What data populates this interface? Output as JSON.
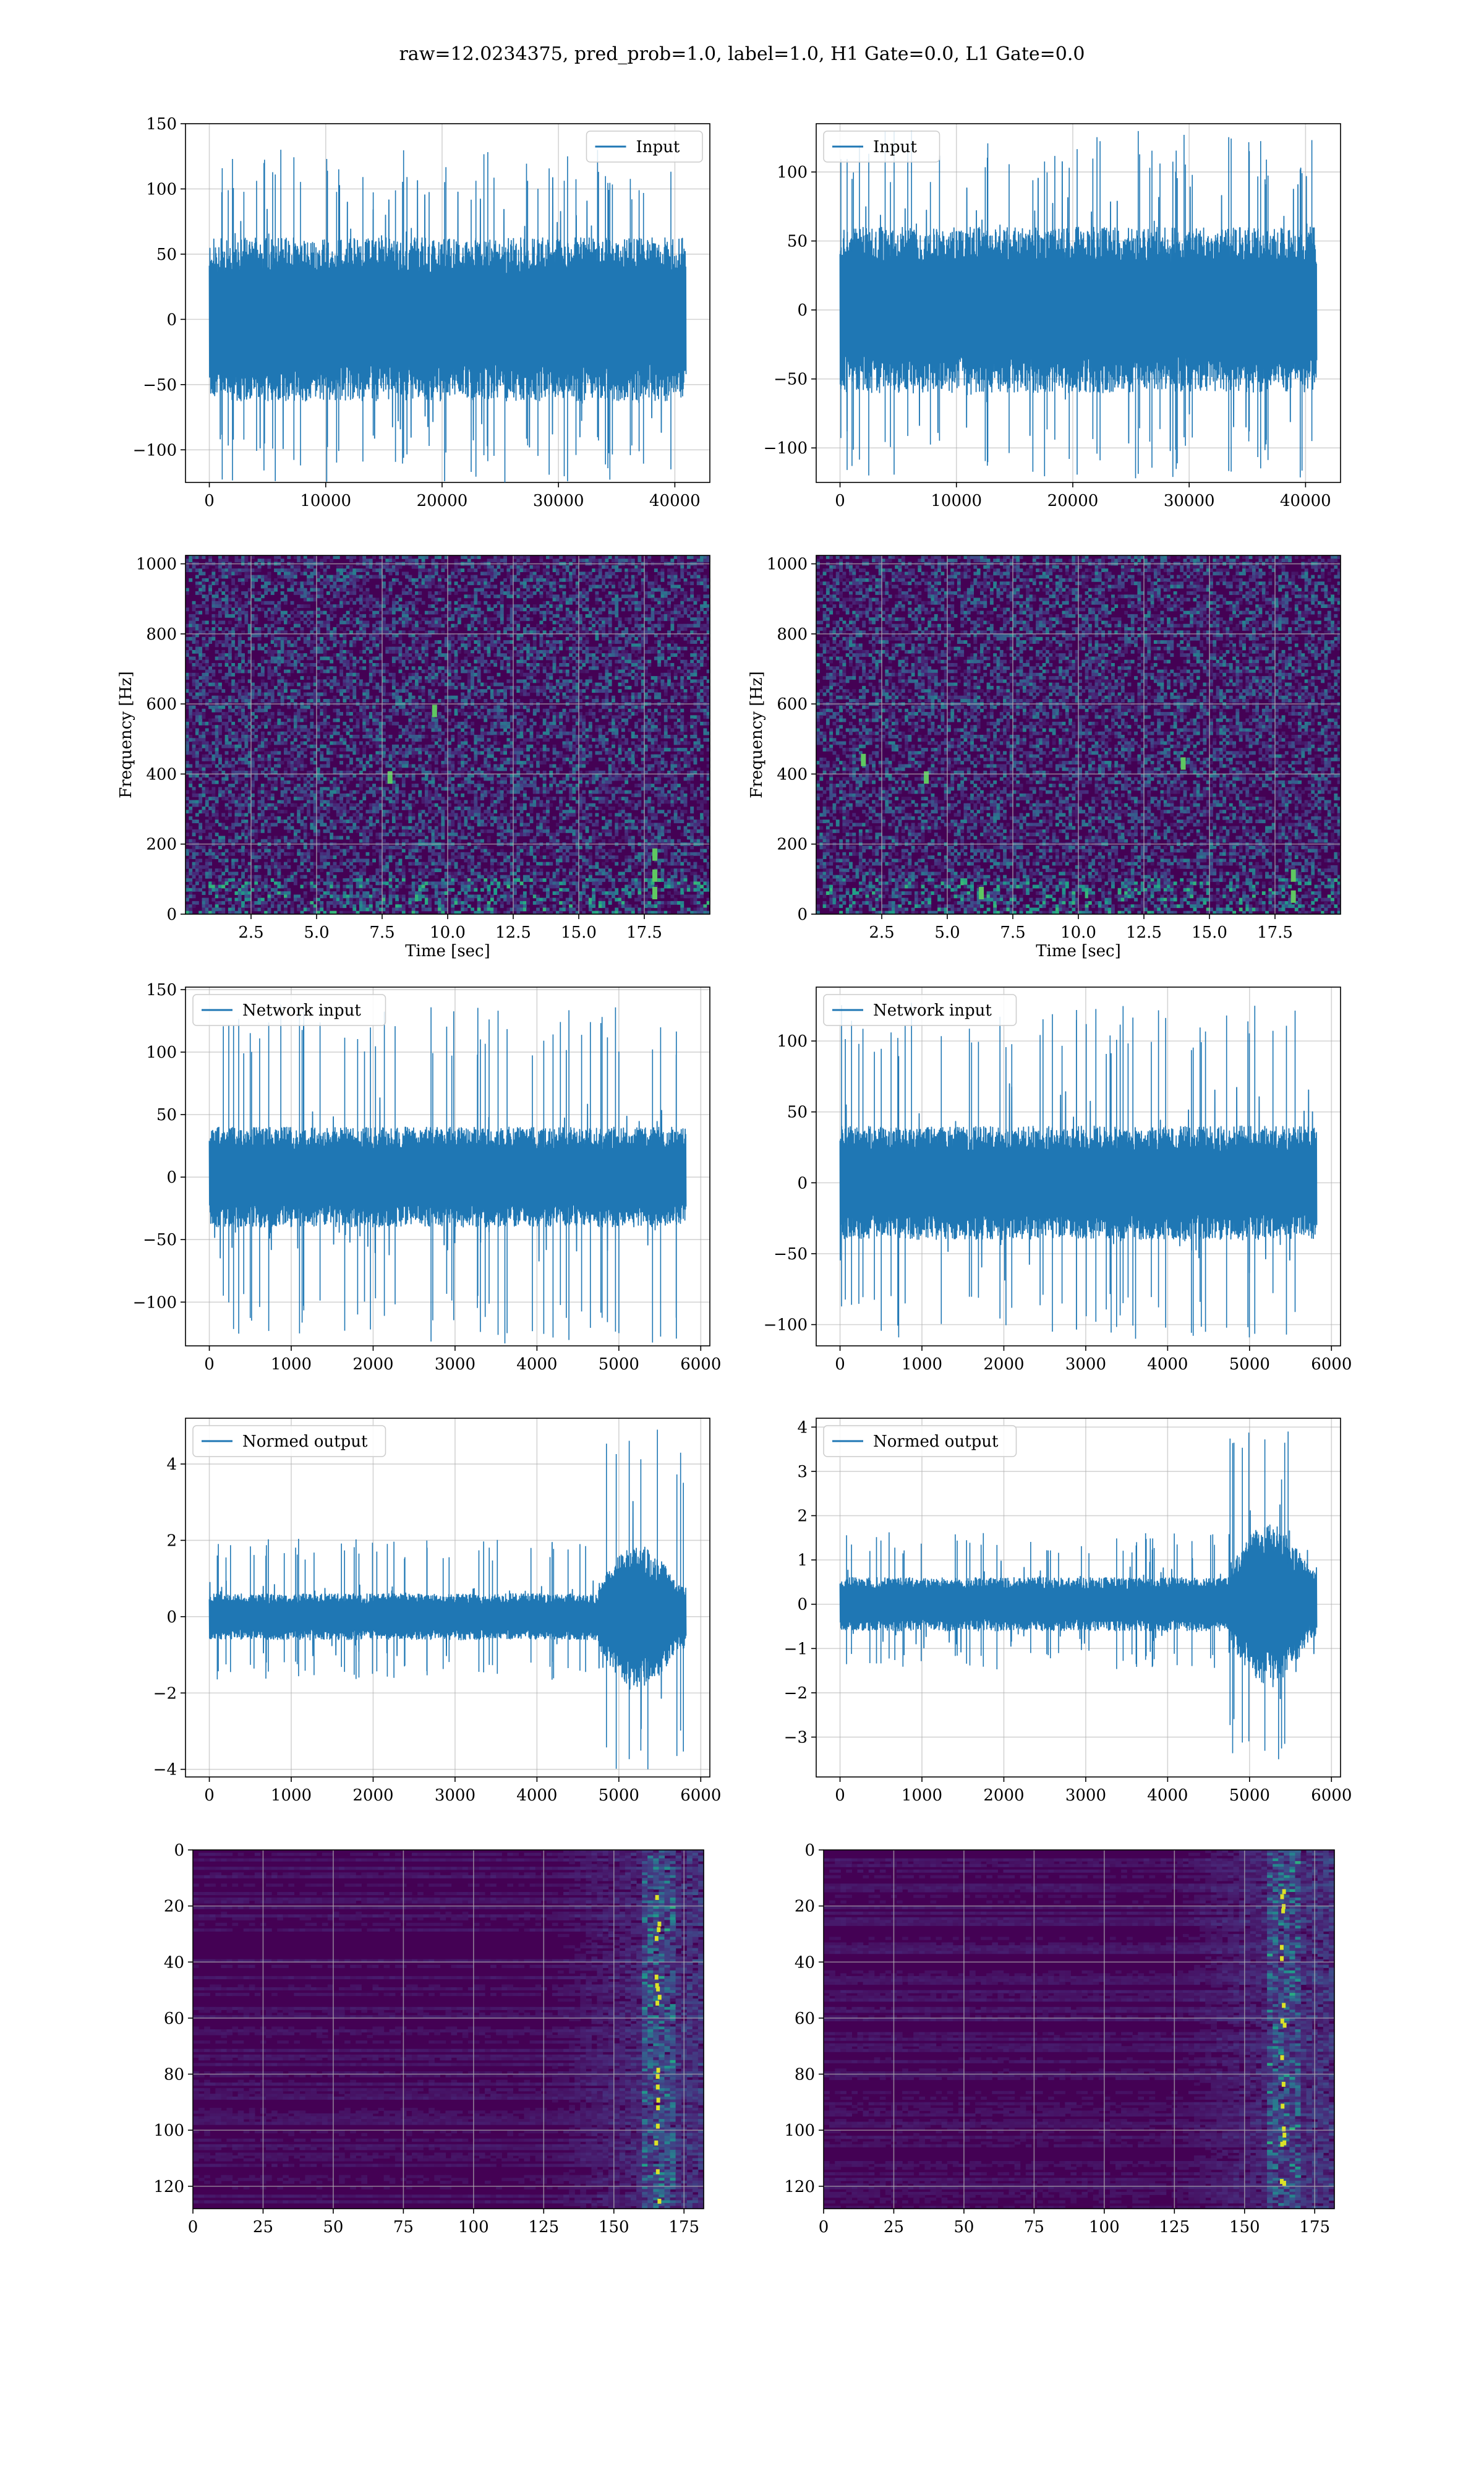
{
  "figure": {
    "title": "raw=12.0234375, pred_prob=1.0, label=1.0, H1 Gate=0.0, L1 Gate=0.0"
  },
  "colors": {
    "line": "#1f77b4",
    "grid": "#b0b0b0",
    "viridis_low": "#440154",
    "viridis_mid": "#21918c",
    "viridis_high": "#fde725"
  },
  "chart_data": [
    {
      "id": "input-h1",
      "type": "line",
      "legend": "Input",
      "legend_loc": "upper right",
      "x_range": [
        0,
        40960
      ],
      "xlim": [
        -2048,
        43008
      ],
      "ylim": [
        -125,
        150
      ],
      "xticks": [
        0,
        10000,
        20000,
        30000,
        40000
      ],
      "yticks": [
        -100,
        -50,
        0,
        50,
        100,
        150
      ],
      "xticklabels": [
        "0",
        "10000",
        "20000",
        "30000",
        "40000"
      ],
      "yticklabels": [
        "−100",
        "−50",
        "0",
        "50",
        "100",
        "150"
      ],
      "envelope": {
        "body": [
          -60,
          65
        ],
        "peak_max": 130,
        "peak_min": -125
      },
      "xlabel": "",
      "ylabel": ""
    },
    {
      "id": "input-l1",
      "type": "line",
      "legend": "Input",
      "legend_loc": "upper left",
      "x_range": [
        0,
        40960
      ],
      "xlim": [
        -2048,
        43008
      ],
      "ylim": [
        -125,
        135
      ],
      "xticks": [
        0,
        10000,
        20000,
        30000,
        40000
      ],
      "yticks": [
        -100,
        -50,
        0,
        50,
        100
      ],
      "xticklabels": [
        "0",
        "10000",
        "20000",
        "30000",
        "40000"
      ],
      "yticklabels": [
        "−100",
        "−50",
        "0",
        "50",
        "100"
      ],
      "envelope": {
        "body": [
          -60,
          60
        ],
        "peak_max": 130,
        "peak_min": -122
      },
      "xlabel": "",
      "ylabel": ""
    },
    {
      "id": "spectrogram-h1",
      "type": "heatmap",
      "xlim": [
        0,
        20
      ],
      "ylim": [
        0,
        1024
      ],
      "xticks": [
        2.5,
        5.0,
        7.5,
        10.0,
        12.5,
        15.0,
        17.5
      ],
      "yticks": [
        0,
        200,
        400,
        600,
        800,
        1000
      ],
      "xticklabels": [
        "2.5",
        "5.0",
        "7.5",
        "10.0",
        "12.5",
        "15.0",
        "17.5"
      ],
      "yticklabels": [
        "0",
        "200",
        "400",
        "600",
        "800",
        "1000"
      ],
      "xlabel": "Time [sec]",
      "ylabel": "Frequency [Hz]",
      "colormap": "viridis",
      "hot_spots": [
        [
          17.9,
          60
        ],
        [
          17.9,
          110
        ],
        [
          17.9,
          170
        ],
        [
          7.8,
          390
        ],
        [
          9.5,
          580
        ]
      ]
    },
    {
      "id": "spectrogram-l1",
      "type": "heatmap",
      "xlim": [
        0,
        20
      ],
      "ylim": [
        0,
        1024
      ],
      "xticks": [
        2.5,
        5.0,
        7.5,
        10.0,
        12.5,
        15.0,
        17.5
      ],
      "yticks": [
        0,
        200,
        400,
        600,
        800,
        1000
      ],
      "xticklabels": [
        "2.5",
        "5.0",
        "7.5",
        "10.0",
        "12.5",
        "15.0",
        "17.5"
      ],
      "yticklabels": [
        "0",
        "200",
        "400",
        "600",
        "800",
        "1000"
      ],
      "xlabel": "Time [sec]",
      "ylabel": "Frequency [Hz]",
      "colormap": "viridis",
      "hot_spots": [
        [
          18.2,
          50
        ],
        [
          18.2,
          110
        ],
        [
          4.2,
          390
        ],
        [
          1.8,
          440
        ],
        [
          6.3,
          60
        ],
        [
          14.0,
          430
        ]
      ]
    },
    {
      "id": "network-input-h1",
      "type": "line",
      "legend": "Network input",
      "legend_loc": "upper left",
      "x_range": [
        0,
        5820
      ],
      "xlim": [
        -291,
        6111
      ],
      "ylim": [
        -135,
        152
      ],
      "xticks": [
        0,
        1000,
        2000,
        3000,
        4000,
        5000,
        6000
      ],
      "yticks": [
        -100,
        -50,
        0,
        50,
        100,
        150
      ],
      "xticklabels": [
        "0",
        "1000",
        "2000",
        "3000",
        "4000",
        "5000",
        "6000"
      ],
      "yticklabels": [
        "−100",
        "−50",
        "0",
        "50",
        "100",
        "150"
      ],
      "envelope": {
        "body": [
          -38,
          42
        ],
        "peak_max": 138,
        "peak_min": -133
      },
      "xlabel": "",
      "ylabel": ""
    },
    {
      "id": "network-input-l1",
      "type": "line",
      "legend": "Network input",
      "legend_loc": "upper left",
      "x_range": [
        0,
        5820
      ],
      "xlim": [
        -291,
        6111
      ],
      "ylim": [
        -115,
        138
      ],
      "xticks": [
        0,
        1000,
        2000,
        3000,
        4000,
        5000,
        6000
      ],
      "yticks": [
        -100,
        -50,
        0,
        50,
        100
      ],
      "xticklabels": [
        "0",
        "1000",
        "2000",
        "3000",
        "4000",
        "5000",
        "6000"
      ],
      "yticklabels": [
        "−100",
        "−50",
        "0",
        "50",
        "100"
      ],
      "envelope": {
        "body": [
          -40,
          40
        ],
        "peak_max": 127,
        "peak_min": -110
      },
      "xlabel": "",
      "ylabel": ""
    },
    {
      "id": "normed-output-h1",
      "type": "line",
      "legend": "Normed output",
      "legend_loc": "upper left",
      "x_range": [
        0,
        5820
      ],
      "xlim": [
        -291,
        6111
      ],
      "ylim": [
        -4.2,
        5.2
      ],
      "xticks": [
        0,
        1000,
        2000,
        3000,
        4000,
        5000,
        6000
      ],
      "yticks": [
        -4,
        -2,
        0,
        2,
        4
      ],
      "xticklabels": [
        "0",
        "1000",
        "2000",
        "3000",
        "4000",
        "5000",
        "6000"
      ],
      "yticklabels": [
        "−4",
        "−2",
        "0",
        "2",
        "4"
      ],
      "envelope": {
        "body": [
          -0.6,
          0.6
        ],
        "burst_start": 4750,
        "burst_amp": 1.7,
        "peak_max": 4.9,
        "peak_min": -4.0
      },
      "xlabel": "",
      "ylabel": ""
    },
    {
      "id": "normed-output-l1",
      "type": "line",
      "legend": "Normed output",
      "legend_loc": "upper left",
      "x_range": [
        0,
        5820
      ],
      "xlim": [
        -291,
        6111
      ],
      "ylim": [
        -3.9,
        4.2
      ],
      "xticks": [
        0,
        1000,
        2000,
        3000,
        4000,
        5000,
        6000
      ],
      "yticks": [
        -3,
        -2,
        -1,
        0,
        1,
        2,
        3,
        4
      ],
      "xticklabels": [
        "0",
        "1000",
        "2000",
        "3000",
        "4000",
        "5000",
        "6000"
      ],
      "yticklabels": [
        "−3",
        "−2",
        "−1",
        "0",
        "1",
        "2",
        "3",
        "4"
      ],
      "envelope": {
        "body": [
          -0.6,
          0.6
        ],
        "burst_start": 4750,
        "burst_amp": 1.6,
        "peak_max": 3.9,
        "peak_min": -3.5
      },
      "xlabel": "",
      "ylabel": ""
    },
    {
      "id": "feature-map-h1",
      "type": "heatmap",
      "xlim": [
        0,
        182
      ],
      "ylim": [
        128,
        0
      ],
      "xticks": [
        0,
        25,
        50,
        75,
        100,
        125,
        150,
        175
      ],
      "yticks": [
        0,
        20,
        40,
        60,
        80,
        100,
        120
      ],
      "xticklabels": [
        "0",
        "25",
        "50",
        "75",
        "100",
        "125",
        "150",
        "175"
      ],
      "yticklabels": [
        "0",
        "20",
        "40",
        "60",
        "80",
        "100",
        "120"
      ],
      "xlabel": "",
      "ylabel": "",
      "colormap": "viridis",
      "activation_column": 165
    },
    {
      "id": "feature-map-l1",
      "type": "heatmap",
      "xlim": [
        0,
        182
      ],
      "ylim": [
        128,
        0
      ],
      "xticks": [
        0,
        25,
        50,
        75,
        100,
        125,
        150,
        175
      ],
      "yticks": [
        0,
        20,
        40,
        60,
        80,
        100,
        120
      ],
      "xticklabels": [
        "0",
        "25",
        "50",
        "75",
        "100",
        "125",
        "150",
        "175"
      ],
      "yticklabels": [
        "0",
        "20",
        "40",
        "60",
        "80",
        "100",
        "120"
      ],
      "xlabel": "",
      "ylabel": "",
      "colormap": "viridis",
      "activation_column": 163
    }
  ]
}
